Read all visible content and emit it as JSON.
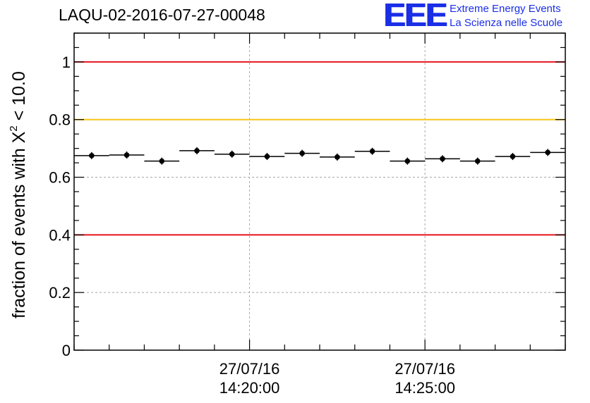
{
  "title": "LAQU-02-2016-07-27-00048",
  "logo": {
    "letters": "EEE",
    "line1": "Extreme Energy Events",
    "line2": "La Scienza nelle Scuole"
  },
  "chart_data": {
    "type": "scatter",
    "title": "LAQU-02-2016-07-27-00048",
    "ylabel_prefix": "fraction of events with X",
    "ylabel_superscript": "2",
    "ylabel_suffix": " < 10.0",
    "xlabel": "",
    "ylim": [
      0,
      1.1
    ],
    "yticks": [
      0,
      0.2,
      0.4,
      0.6,
      0.8,
      1
    ],
    "ytick_labels": [
      "0",
      "0.2",
      "0.4",
      "0.6",
      "0.8",
      "1"
    ],
    "x_unit": "minutes after 27/07/16 14:15:00",
    "xlim": [
      0,
      14.0
    ],
    "xtick_labels": [
      {
        "x": 5,
        "date": "27/07/16",
        "time": "14:20:00"
      },
      {
        "x": 10,
        "date": "27/07/16",
        "time": "14:25:00"
      }
    ],
    "grid": true,
    "bin_width": 1.0,
    "points": [
      {
        "x": 0.5,
        "y": 0.675
      },
      {
        "x": 1.5,
        "y": 0.677
      },
      {
        "x": 2.5,
        "y": 0.656
      },
      {
        "x": 3.5,
        "y": 0.692
      },
      {
        "x": 4.5,
        "y": 0.68
      },
      {
        "x": 5.5,
        "y": 0.672
      },
      {
        "x": 6.5,
        "y": 0.683
      },
      {
        "x": 7.5,
        "y": 0.67
      },
      {
        "x": 8.5,
        "y": 0.69
      },
      {
        "x": 9.5,
        "y": 0.656
      },
      {
        "x": 10.5,
        "y": 0.664
      },
      {
        "x": 11.5,
        "y": 0.656
      },
      {
        "x": 12.5,
        "y": 0.672
      },
      {
        "x": 13.5,
        "y": 0.686
      }
    ],
    "reference_lines": [
      {
        "y": 1.0,
        "color": "#e8141e"
      },
      {
        "y": 0.8,
        "color": "#f7c518"
      },
      {
        "y": 0.4,
        "color": "#e8141e"
      }
    ]
  }
}
